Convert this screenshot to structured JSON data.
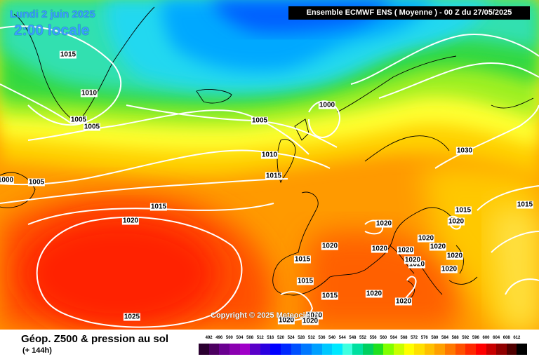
{
  "header": {
    "date_label": "Lundi 2 juin 2025",
    "time_label": "2:00 locale",
    "model_info": "Ensemble ECMWF ENS  ( Moyenne )  -  00 Z du 27/05/2025"
  },
  "map": {
    "copyright": "Copyright © 2025 Meteociel.fr",
    "isobar_labels": [
      "1015",
      "1010",
      "1005",
      "1005",
      "1000",
      "1005",
      "1005",
      "1000",
      "1010",
      "1015",
      "1015",
      "1020",
      "1025",
      "1030",
      "1015",
      "1020",
      "1020",
      "1020",
      "1020",
      "1020",
      "1020",
      "1020",
      "1020",
      "1020",
      "1020",
      "1020",
      "1020",
      "1020",
      "1015",
      "1015",
      "1015",
      "1020",
      "1020",
      "1020",
      "1020",
      "1015"
    ]
  },
  "footer": {
    "variable_title": "Géop. Z500 & pression au sol",
    "lead_time": "(+ 144h)"
  },
  "legend": {
    "ticks": [
      "492",
      "496",
      "500",
      "504",
      "508",
      "512",
      "516",
      "520",
      "524",
      "528",
      "532",
      "536",
      "540",
      "544",
      "548",
      "552",
      "556",
      "560",
      "564",
      "568",
      "572",
      "576",
      "580",
      "584",
      "588",
      "592",
      "596",
      "600",
      "604",
      "608",
      "612"
    ],
    "colors": [
      "#2a0030",
      "#4c0060",
      "#6a0090",
      "#8a00b0",
      "#a000c8",
      "#5a00c8",
      "#2a00e0",
      "#0000ff",
      "#0028ff",
      "#0050ff",
      "#0078ff",
      "#00a0ff",
      "#00c8ff",
      "#00e8ff",
      "#40ffe0",
      "#00e0a0",
      "#00d060",
      "#20e020",
      "#80ff00",
      "#c8ff00",
      "#ffff00",
      "#ffe000",
      "#ffc000",
      "#ffa000",
      "#ff7800",
      "#ff5000",
      "#ff2800",
      "#ff0000",
      "#c80000",
      "#900000",
      "#500000",
      "#000000"
    ]
  }
}
